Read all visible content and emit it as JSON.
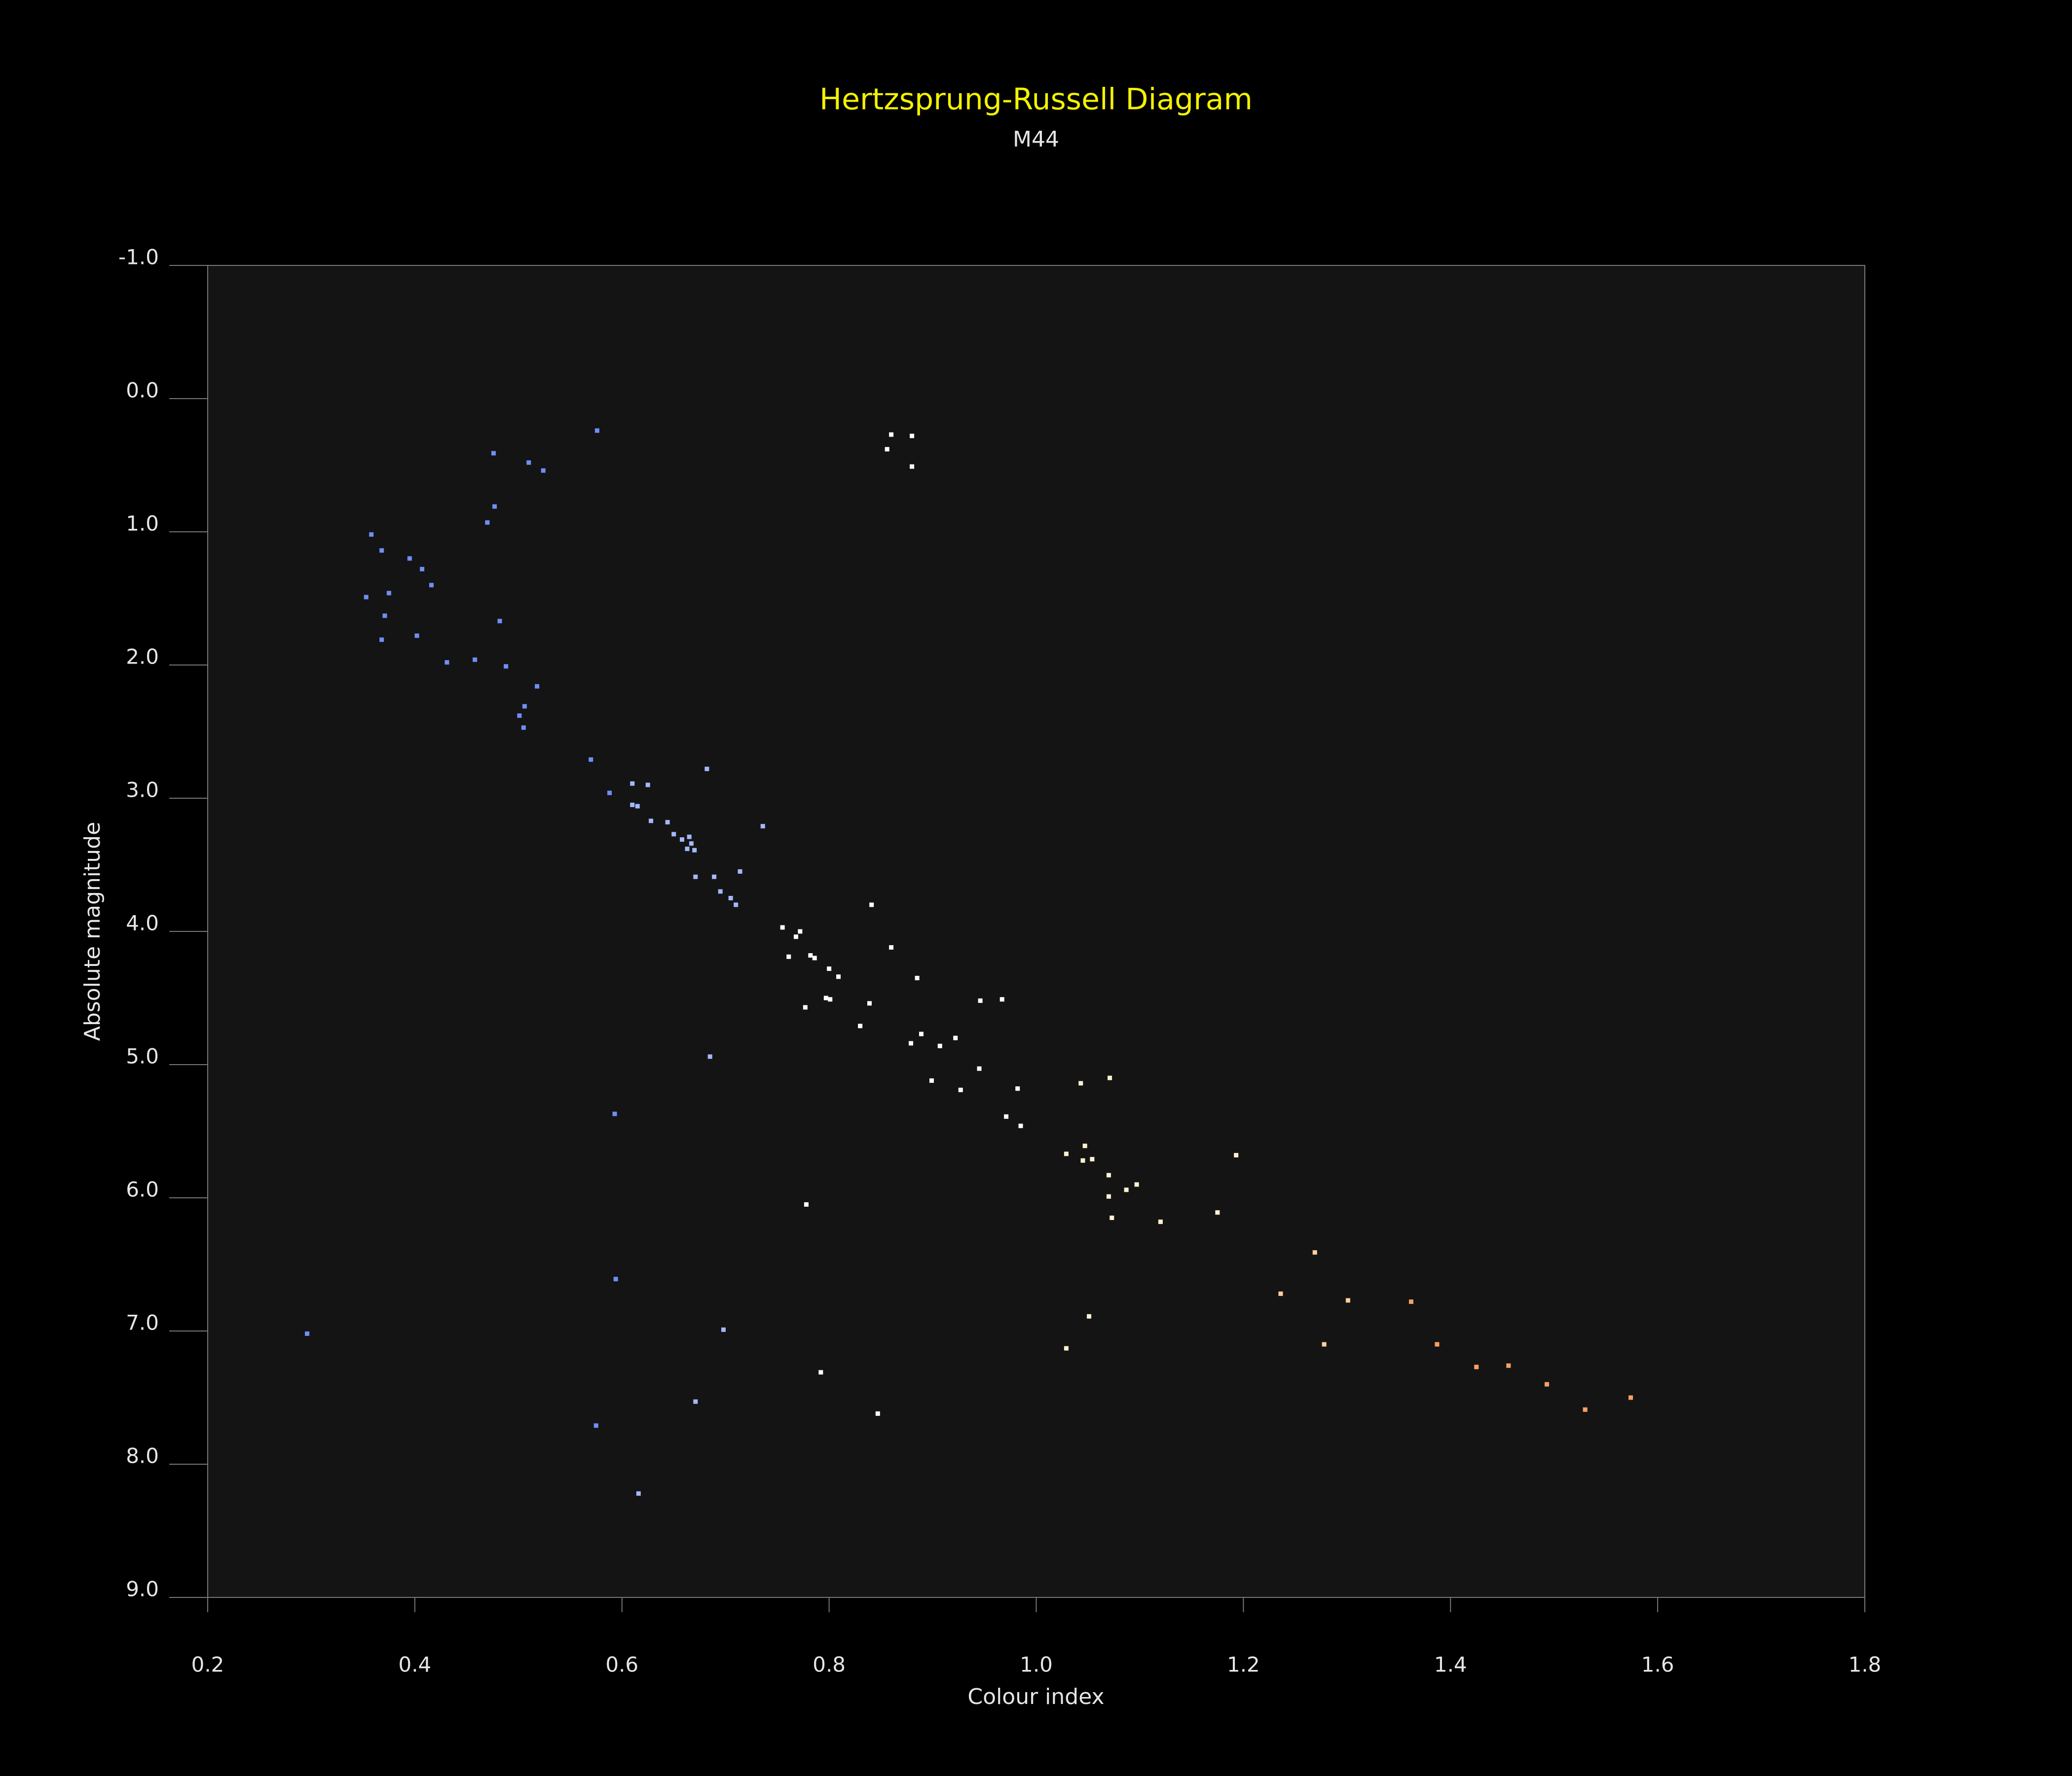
{
  "chart_data": {
    "type": "scatter",
    "title": "Hertzsprung-Russell Diagram",
    "subtitle": "M44",
    "x_label": "Colour index",
    "y_label": "Absolute magnitude",
    "xlim": [
      0.2,
      1.8
    ],
    "xticks": [
      0.2,
      0.4,
      0.6,
      0.8,
      {
        "value": 1,
        "label": "1.0"
      },
      1.2,
      1.4,
      1.6,
      1.8
    ],
    "ylim": [
      9,
      -1
    ],
    "yticks": [
      {
        "value": -1,
        "label": "-1.0"
      },
      {
        "value": 0,
        "label": "0.0"
      },
      {
        "value": 1,
        "label": "1.0"
      },
      {
        "value": 2,
        "label": "2.0"
      },
      {
        "value": 3,
        "label": "3.0"
      },
      {
        "value": 4,
        "label": "4.0"
      },
      {
        "value": 5,
        "label": "5.0"
      },
      {
        "value": 6,
        "label": "6.0"
      },
      {
        "value": 7,
        "label": "7.0"
      },
      {
        "value": 8,
        "label": "8.0"
      },
      {
        "value": 9,
        "label": "9.0"
      }
    ],
    "grid": false,
    "background": "#000000",
    "plot_background": "#141414",
    "title_color": "#f2f200",
    "x": [
      0.576,
      0.476,
      0.51,
      0.524,
      0.477,
      0.47,
      0.358,
      0.368,
      0.395,
      0.407,
      0.416,
      0.375,
      0.353,
      0.371,
      0.482,
      0.402,
      0.368,
      0.431,
      0.458,
      0.488,
      0.518,
      0.506,
      0.501,
      0.505,
      0.57,
      0.588,
      0.61,
      0.625,
      0.682,
      0.61,
      0.615,
      0.628,
      0.644,
      0.736,
      0.65,
      0.658,
      0.665,
      0.667,
      0.663,
      0.67,
      0.714,
      0.671,
      0.689,
      0.695,
      0.705,
      0.71,
      0.841,
      0.755,
      0.772,
      0.768,
      0.86,
      0.761,
      0.782,
      0.786,
      0.8,
      0.809,
      0.885,
      0.797,
      0.801,
      0.946,
      0.967,
      0.839,
      0.777,
      0.83,
      0.889,
      0.922,
      0.879,
      0.907,
      0.685,
      0.945,
      1.071,
      0.899,
      1.043,
      0.982,
      0.927,
      0.593,
      0.971,
      0.985,
      1.047,
      1.029,
      1.193,
      1.045,
      1.054,
      1.07,
      1.097,
      1.087,
      1.07,
      0.778,
      1.175,
      1.073,
      1.12,
      1.269,
      0.594,
      1.236,
      1.301,
      1.362,
      1.051,
      0.698,
      0.296,
      1.278,
      1.387,
      1.029,
      1.425,
      1.456,
      0.792,
      1.493,
      1.574,
      0.671,
      1.53,
      0.847,
      0.575,
      0.616,
      0.86,
      0.88,
      0.856,
      0.88
    ],
    "values": [
      0.24,
      0.41,
      0.48,
      0.54,
      0.81,
      0.93,
      1.02,
      1.14,
      1.2,
      1.28,
      1.4,
      1.46,
      1.49,
      1.63,
      1.67,
      1.78,
      1.81,
      1.98,
      1.96,
      2.01,
      2.16,
      2.31,
      2.38,
      2.47,
      2.71,
      2.96,
      2.89,
      2.9,
      2.78,
      3.05,
      3.06,
      3.17,
      3.18,
      3.21,
      3.27,
      3.31,
      3.29,
      3.34,
      3.38,
      3.39,
      3.55,
      3.59,
      3.59,
      3.7,
      3.75,
      3.8,
      3.8,
      3.97,
      4.0,
      4.04,
      4.12,
      4.19,
      4.18,
      4.2,
      4.28,
      4.34,
      4.35,
      4.5,
      4.51,
      4.52,
      4.51,
      4.54,
      4.57,
      4.71,
      4.77,
      4.8,
      4.84,
      4.86,
      4.94,
      5.03,
      5.1,
      5.12,
      5.14,
      5.18,
      5.19,
      5.37,
      5.39,
      5.46,
      5.61,
      5.67,
      5.68,
      5.72,
      5.71,
      5.83,
      5.9,
      5.94,
      5.99,
      6.05,
      6.11,
      6.15,
      6.18,
      6.41,
      6.61,
      6.72,
      6.77,
      6.78,
      6.89,
      6.99,
      7.02,
      7.1,
      7.1,
      7.13,
      7.27,
      7.26,
      7.31,
      7.4,
      7.5,
      7.53,
      7.59,
      7.62,
      7.71,
      8.22,
      0.27,
      0.28,
      0.38,
      0.51
    ],
    "colors": [
      "#6f8ff5",
      "#6f8ff5",
      "#6f8ff5",
      "#6f8ff5",
      "#6f8ff5",
      "#6f8ff5",
      "#6f8ff5",
      "#6f8ff5",
      "#6f8ff5",
      "#6f8ff5",
      "#6f8ff5",
      "#6f8ff5",
      "#6f8ff5",
      "#6f8ff5",
      "#6f8ff5",
      "#6f8ff5",
      "#6f8ff5",
      "#6f8ff5",
      "#6f8ff5",
      "#6f8ff5",
      "#6f8ff5",
      "#6f8ff5",
      "#6f8ff5",
      "#6f8ff5",
      "#6f8ff5",
      "#6f8ff5",
      "#a3b8ff",
      "#a3b8ff",
      "#a3b8ff",
      "#a3b8ff",
      "#a3b8ff",
      "#a3b8ff",
      "#a3b8ff",
      "#a3b8ff",
      "#a3b8ff",
      "#a3b8ff",
      "#a3b8ff",
      "#a3b8ff",
      "#a3b8ff",
      "#a3b8ff",
      "#a3b8ff",
      "#a3b8ff",
      "#a3b8ff",
      "#a3b8ff",
      "#a3b8ff",
      "#a3b8ff",
      "#ffffff",
      "#ffffff",
      "#ffffff",
      "#ffffff",
      "#ffffff",
      "#ffffff",
      "#ffffff",
      "#ffffff",
      "#ffffff",
      "#ffffff",
      "#ffffff",
      "#ffffff",
      "#ffffff",
      "#ffffff",
      "#ffffff",
      "#ffffff",
      "#ffffff",
      "#ffffff",
      "#ffffff",
      "#ffffff",
      "#ffffff",
      "#ffffff",
      "#a3b8ff",
      "#ffffff",
      "#fff1d0",
      "#ffffff",
      "#fff1d0",
      "#ffffff",
      "#ffffff",
      "#6f8ff5",
      "#ffffff",
      "#ffffff",
      "#fff1d0",
      "#fff1d0",
      "#fff1d0",
      "#fff1d0",
      "#fff1d0",
      "#fff1d0",
      "#fff1d0",
      "#fff1d0",
      "#fff1d0",
      "#ffffff",
      "#fff1d0",
      "#fff1d0",
      "#fff1d0",
      "#ffcf99",
      "#6f8ff5",
      "#ffcf99",
      "#ffcf99",
      "#ff9f66",
      "#fff1d0",
      "#a3b8ff",
      "#6f8ff5",
      "#ffcf99",
      "#ff9f66",
      "#fff1d0",
      "#ff9f66",
      "#ff9f66",
      "#ffffff",
      "#ff9f66",
      "#ff9f66",
      "#a3b8ff",
      "#ff9f66",
      "#ffffff",
      "#6f8ff5",
      "#a3b8ff",
      "#ffffff",
      "#ffffff",
      "#ffffff",
      "#ffffff"
    ]
  }
}
